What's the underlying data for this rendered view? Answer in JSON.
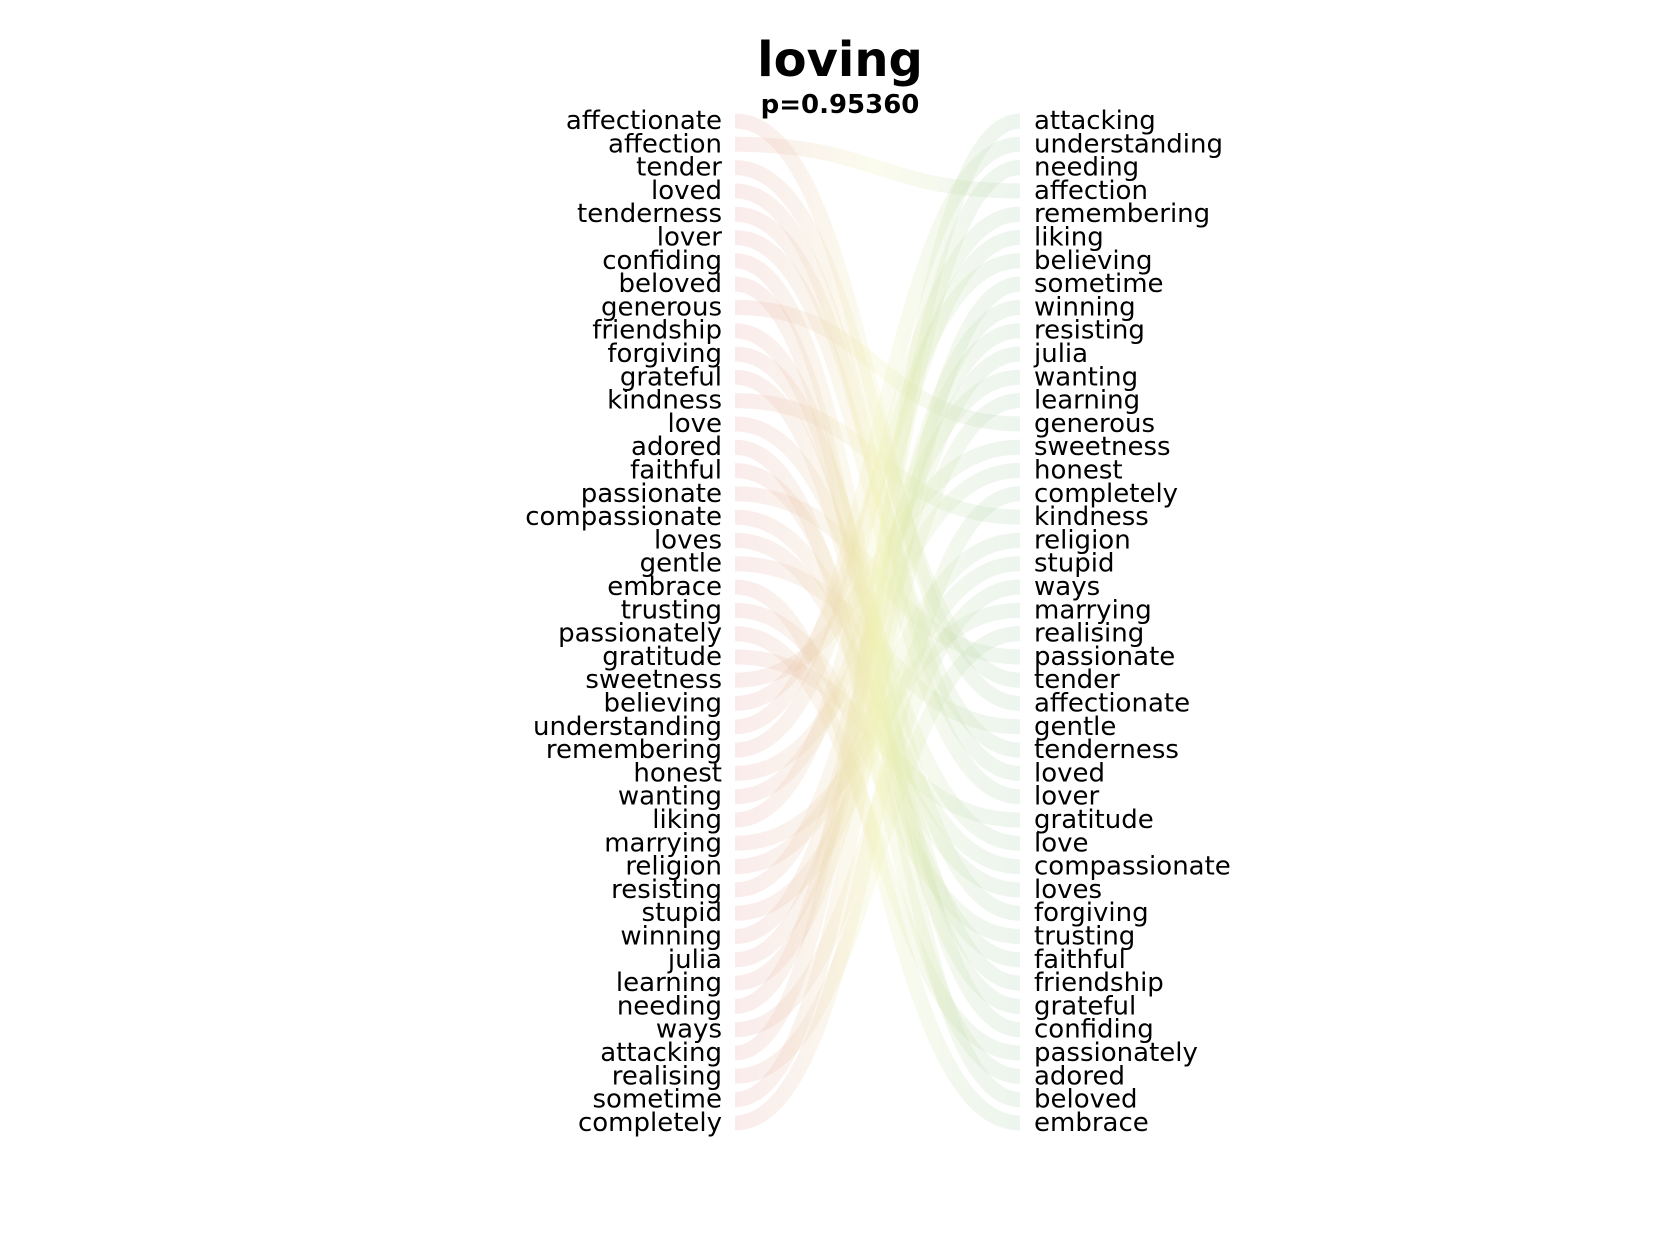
{
  "chart_data": {
    "type": "bump",
    "title": "loving",
    "subtitle": "p=0.95360",
    "left_ranking": [
      "affectionate",
      "affection",
      "tender",
      "loved",
      "tenderness",
      "lover",
      "confiding",
      "beloved",
      "generous",
      "friendship",
      "forgiving",
      "grateful",
      "kindness",
      "love",
      "adored",
      "faithful",
      "passionate",
      "compassionate",
      "loves",
      "gentle",
      "embrace",
      "trusting",
      "passionately",
      "gratitude",
      "sweetness",
      "believing",
      "understanding",
      "remembering",
      "honest",
      "wanting",
      "liking",
      "marrying",
      "religion",
      "resisting",
      "stupid",
      "winning",
      "julia",
      "learning",
      "needing",
      "ways",
      "attacking",
      "realising",
      "sometime",
      "completely"
    ],
    "right_ranking": [
      "attacking",
      "understanding",
      "needing",
      "affection",
      "remembering",
      "liking",
      "believing",
      "sometime",
      "winning",
      "resisting",
      "julia",
      "wanting",
      "learning",
      "generous",
      "sweetness",
      "honest",
      "completely",
      "kindness",
      "religion",
      "stupid",
      "ways",
      "marrying",
      "realising",
      "passionate",
      "tender",
      "affectionate",
      "gentle",
      "tenderness",
      "loved",
      "lover",
      "gratitude",
      "love",
      "compassionate",
      "loves",
      "forgiving",
      "trusting",
      "faithful",
      "friendship",
      "grateful",
      "confiding",
      "passionately",
      "adored",
      "beloved",
      "embrace"
    ],
    "colors": {
      "left_band": "#e8a8a8",
      "right_band": "#a8d0b0",
      "mid": "#eef0b0"
    }
  }
}
